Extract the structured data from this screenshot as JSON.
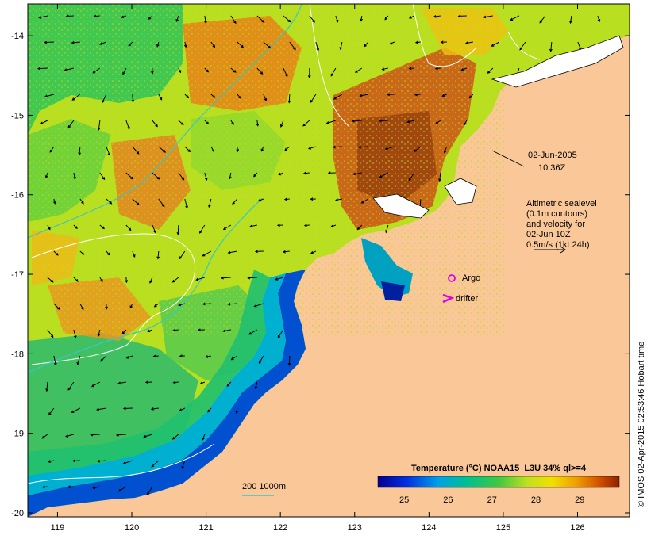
{
  "map": {
    "lon_ticks": [
      "119",
      "120",
      "121",
      "122",
      "123",
      "124",
      "125",
      "126"
    ],
    "lat_ticks": [
      "-14",
      "-15",
      "-16",
      "-17",
      "-18",
      "-19",
      "-20"
    ],
    "lon_range": [
      118.6,
      126.7
    ],
    "lat_range": [
      -20.05,
      -13.6
    ]
  },
  "annotations": {
    "date": "02-Jun-2005",
    "time": "10:36Z",
    "alt_line1": "Altimetric sealevel",
    "alt_line2": "(0.1m contours)",
    "alt_line3": "and velocity for",
    "alt_line4": "02-Jun 10Z",
    "alt_line5": "0.5m/s (1kt 24h)",
    "argo_label": "Argo",
    "drifter_label": "drifter",
    "isobath_label": "200  1000m",
    "credit": "© IMOS 02-Apr-2015 02:53:46 Hobart time"
  },
  "colorbar": {
    "title": "Temperature (°C) NOAA15_L3U 34% ql>=4",
    "ticks": [
      "25",
      "26",
      "27",
      "28",
      "29"
    ],
    "range": [
      24.4,
      29.9
    ]
  },
  "colors": {
    "land": "#fac898",
    "argo": "#e000e0",
    "drifter": "#e000e0",
    "isobath": "#39c6c6",
    "contour": "#ffffff"
  }
}
